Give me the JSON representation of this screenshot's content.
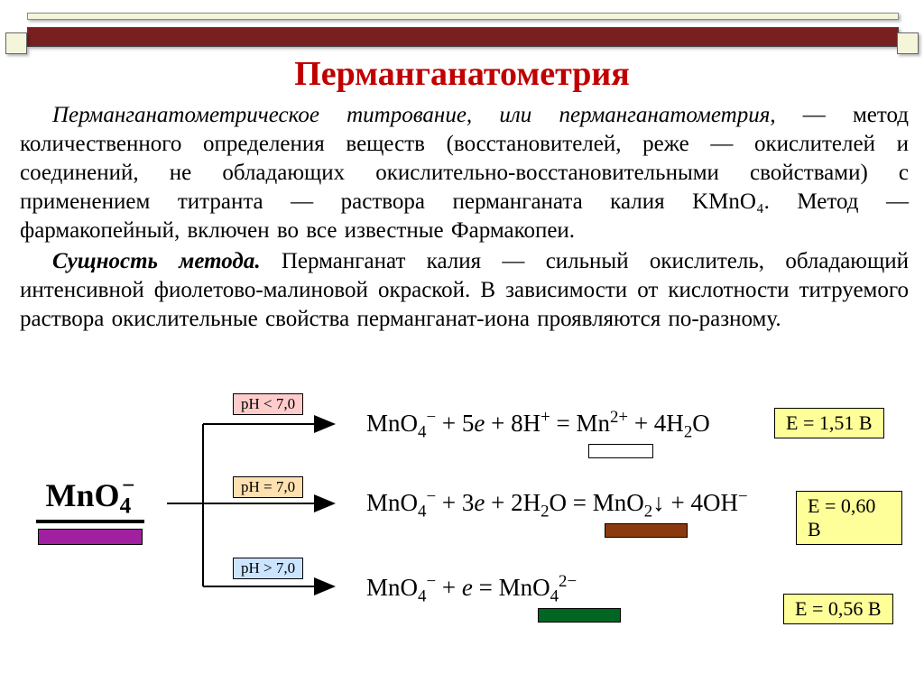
{
  "title": "Перманганатометрия",
  "paragraph1_prefix": "Перманганатометрическое титрование, или перманганатометрия,",
  "paragraph1_body": " — метод количественного определения веществ (восстановителей, реже — окислителей и соединений, не обладающих окислительно-восстановительными свойствами) с применением титранта — раствора перманганата калия KMnO₄. Метод — фармакопейный, включен во все известные Фармакопеи.",
  "paragraph2_prefix": "Сущность метода.",
  "paragraph2_body": " Перманганат калия — сильный окислитель, обладающий интенсивной фиолетово-малиновой окраской. В зависимости от кислотности титруемого раствора окислительные свойства перманганат-иона проявляются по-разному.",
  "main_formula_html": "MnO<sub style='vertical-align:-0.3em'>4</sub><sup style='margin-left:-0.4em;vertical-align:0.6em'>−</sup>",
  "reactions": {
    "acidic": {
      "ph_label": "pH < 7,0",
      "ph_bg": "#ffcccc",
      "equation_html": "MnO<sub>4</sub><sup>−</sup> + 5<i>e</i> + 8H<sup>+</sup> = Mn<sup>2+</sup> + 4H<sub>2</sub>O",
      "result_color": "#ffffff",
      "potential": "E = 1,51 B",
      "potential_bg": "#ffff99"
    },
    "neutral": {
      "ph_label": "pH = 7,0",
      "ph_bg": "#ffe0b0",
      "equation_html": "MnO<sub>4</sub><sup>−</sup> + 3<i>e</i> + 2H<sub>2</sub>O = MnO<sub>2</sub>↓ + 4OH<sup>−</sup>",
      "result_color": "#8a3a0e",
      "potential": "E = 0,60 B",
      "potential_bg": "#ffff99"
    },
    "basic": {
      "ph_label": "pH > 7,0",
      "ph_bg": "#cce5ff",
      "equation_html": "MnO<sub>4</sub><sup>−</sup> + <i>e</i> = MnO<sub>4</sub><sup>2−</sup>",
      "result_color": "#006622",
      "potential": "E = 0,56 B",
      "potential_bg": "#ffff99"
    }
  },
  "colors": {
    "title": "#c00000",
    "top_border": "#f5f5dc",
    "red_band": "#7a1f1f",
    "mno4_bar": "#a020a0"
  }
}
